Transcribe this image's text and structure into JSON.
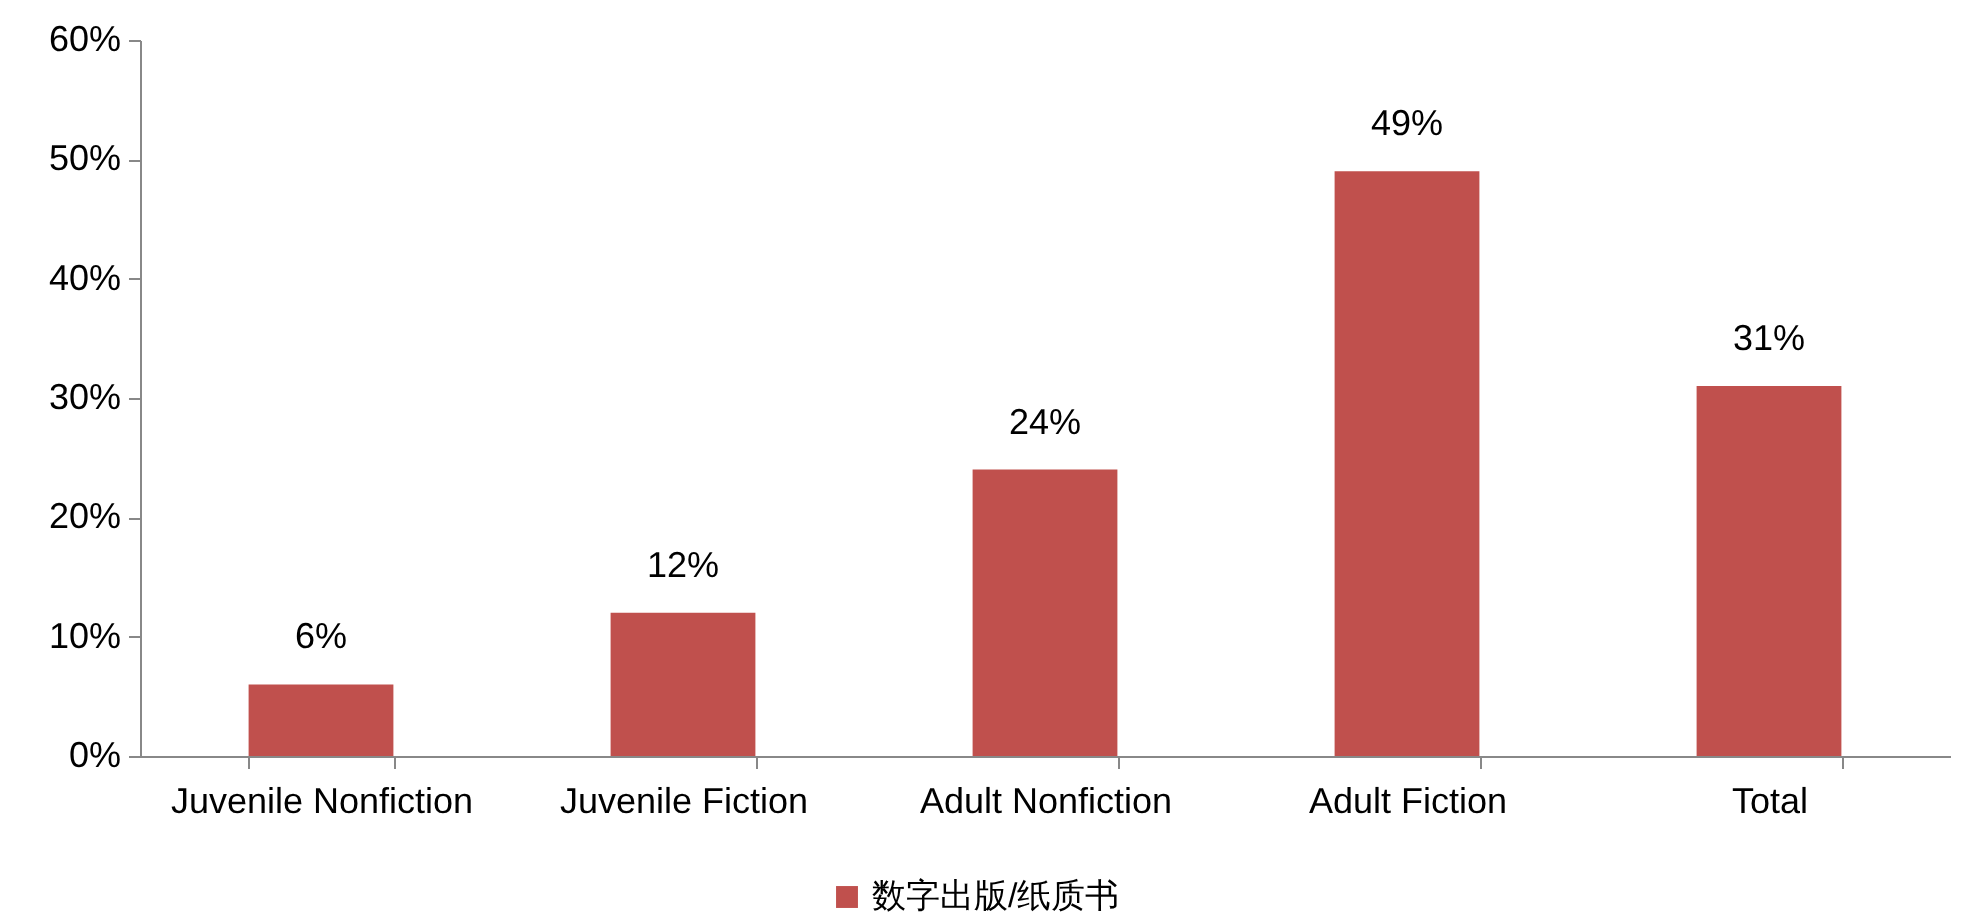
{
  "chart_data": {
    "type": "bar",
    "categories": [
      "Juvenile Nonfiction",
      "Juvenile Fiction",
      "Adult Nonfiction",
      "Adult Fiction",
      "Total"
    ],
    "series": [
      {
        "name": "数字出版/纸质书",
        "color": "#c0504d",
        "values": [
          6,
          12,
          24,
          49,
          31
        ],
        "value_labels": [
          "6%",
          "12%",
          "24%",
          "49%",
          "31%"
        ]
      }
    ],
    "ylim": [
      0,
      60
    ],
    "yticks": [
      {
        "value": 0,
        "label": "0%"
      },
      {
        "value": 10,
        "label": "10%"
      },
      {
        "value": 20,
        "label": "20%"
      },
      {
        "value": 30,
        "label": "30%"
      },
      {
        "value": 40,
        "label": "40%"
      },
      {
        "value": 50,
        "label": "50%"
      },
      {
        "value": 60,
        "label": "60%"
      }
    ],
    "grid": false,
    "legend": "bottom"
  }
}
